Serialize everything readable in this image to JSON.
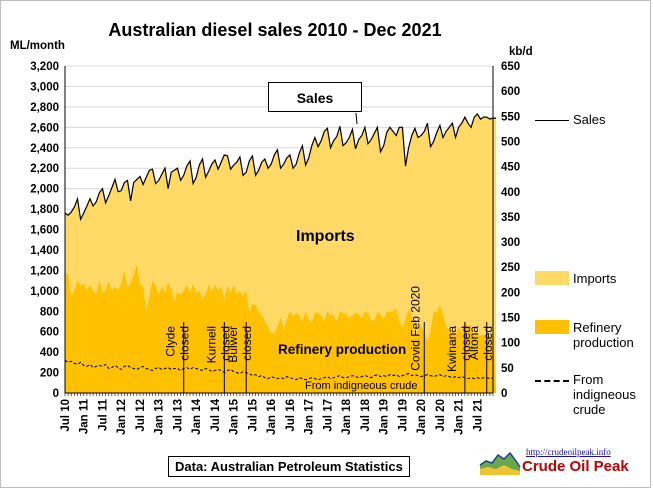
{
  "chart_data": {
    "type": "area",
    "title": "Australian diesel sales 2010 - Dec 2021",
    "ylabel": "ML/month",
    "y2label": "kb/d",
    "ylim": [
      0,
      3200
    ],
    "y2lim": [
      0,
      650
    ],
    "yticks": [
      "0",
      "200",
      "400",
      "600",
      "800",
      "1,000",
      "1,200",
      "1,400",
      "1,600",
      "1,800",
      "2,000",
      "2,200",
      "2,400",
      "2,600",
      "2,800",
      "3,000",
      "3,200"
    ],
    "y2ticks": [
      "0",
      "50",
      "100",
      "150",
      "200",
      "250",
      "300",
      "350",
      "400",
      "450",
      "500",
      "550",
      "600",
      "650"
    ],
    "xticks": [
      "Jul 10",
      "Jan 11",
      "Jul 11",
      "Jan 12",
      "Jul 12",
      "Jan 13",
      "Jul 13",
      "Jan 14",
      "Jul 14",
      "Jan 15",
      "Jul 15",
      "Jan 16",
      "Jul 16",
      "Jan 17",
      "Jul 17",
      "Jan 18",
      "Jul 18",
      "Jan 19",
      "Jul 19",
      "Jan 20",
      "Jul 20",
      "Jan 21",
      "Jul 21"
    ],
    "start": "2010-07",
    "end": "2021-12",
    "grid": true,
    "legend_position": "right",
    "series": [
      {
        "name": "Sales",
        "type": "line",
        "color": "#000000",
        "values": [
          1760,
          1740,
          1770,
          1820,
          1900,
          1700,
          1760,
          1830,
          1900,
          1830,
          1870,
          1960,
          2000,
          1860,
          1930,
          2010,
          2090,
          1970,
          1980,
          2060,
          2080,
          1880,
          2060,
          2090,
          2120,
          2040,
          2110,
          2180,
          2190,
          2050,
          2080,
          2140,
          2200,
          2000,
          2160,
          2180,
          2200,
          2080,
          2130,
          2220,
          2270,
          2050,
          2110,
          2230,
          2290,
          2110,
          2170,
          2240,
          2280,
          2190,
          2260,
          2330,
          2320,
          2190,
          2230,
          2260,
          2310,
          2130,
          2160,
          2270,
          2320,
          2130,
          2180,
          2260,
          2290,
          2200,
          2240,
          2330,
          2380,
          2200,
          2240,
          2300,
          2330,
          2200,
          2240,
          2350,
          2420,
          2230,
          2300,
          2420,
          2500,
          2410,
          2470,
          2560,
          2590,
          2400,
          2470,
          2510,
          2610,
          2420,
          2450,
          2500,
          2580,
          2390,
          2480,
          2520,
          2600,
          2440,
          2480,
          2540,
          2600,
          2360,
          2420,
          2550,
          2600,
          2560,
          2520,
          2600,
          2600,
          2220,
          2400,
          2520,
          2590,
          2500,
          2520,
          2560,
          2640,
          2410,
          2460,
          2550,
          2620,
          2500,
          2560,
          2600,
          2640,
          2500,
          2600,
          2640,
          2700,
          2640,
          2600,
          2700,
          2730,
          2680,
          2700,
          2700,
          2680,
          2690,
          2690
        ]
      },
      {
        "name": "Imports",
        "type": "area",
        "color": "#FFD966",
        "values": [
          1760,
          1740,
          1770,
          1820,
          1900,
          1700,
          1760,
          1830,
          1900,
          1830,
          1870,
          1960,
          2000,
          1860,
          1930,
          2010,
          2090,
          1970,
          1980,
          2060,
          2080,
          1880,
          2060,
          2090,
          2120,
          2040,
          2110,
          2180,
          2190,
          2050,
          2080,
          2140,
          2200,
          2000,
          2160,
          2180,
          2200,
          2080,
          2130,
          2220,
          2270,
          2050,
          2110,
          2230,
          2290,
          2110,
          2170,
          2240,
          2280,
          2190,
          2260,
          2330,
          2320,
          2190,
          2230,
          2260,
          2310,
          2130,
          2160,
          2270,
          2320,
          2130,
          2180,
          2260,
          2290,
          2200,
          2240,
          2330,
          2380,
          2200,
          2240,
          2300,
          2330,
          2200,
          2240,
          2350,
          2420,
          2230,
          2300,
          2420,
          2500,
          2410,
          2470,
          2560,
          2590,
          2400,
          2470,
          2510,
          2610,
          2420,
          2450,
          2500,
          2580,
          2390,
          2480,
          2520,
          2600,
          2440,
          2480,
          2540,
          2600,
          2360,
          2420,
          2550,
          2600,
          2560,
          2520,
          2600,
          2600,
          2220,
          2400,
          2520,
          2590,
          2500,
          2520,
          2560,
          2640,
          2410,
          2460,
          2550,
          2620,
          2500,
          2560,
          2600,
          2640,
          2500,
          2600,
          2640,
          2700,
          2640,
          2600,
          2700,
          2730,
          2680,
          2700,
          2700,
          2680,
          2690,
          2690
        ]
      },
      {
        "name": "Refinery production",
        "type": "area",
        "color": "#FFC000",
        "values": [
          1180,
          1160,
          950,
          1000,
          1100,
          1050,
          1070,
          1000,
          1060,
          1000,
          960,
          1100,
          980,
          1000,
          1090,
          1000,
          1040,
          1010,
          1060,
          1200,
          1020,
          1080,
          1150,
          1260,
          1060,
          1040,
          800,
          940,
          1100,
          1050,
          960,
          1040,
          980,
          1080,
          1020,
          900,
          990,
          960,
          1000,
          1060,
          980,
          1070,
          980,
          1000,
          920,
          960,
          1060,
          990,
          1060,
          1000,
          1040,
          920,
          1050,
          980,
          1060,
          970,
          1000,
          940,
          1000,
          780,
          870,
          860,
          790,
          760,
          700,
          650,
          580,
          590,
          650,
          740,
          620,
          720,
          800,
          750,
          780,
          760,
          690,
          800,
          720,
          680,
          790,
          780,
          760,
          700,
          800,
          760,
          760,
          700,
          800,
          780,
          770,
          730,
          760,
          790,
          770,
          730,
          800,
          780,
          710,
          700,
          800,
          760,
          720,
          800,
          790,
          800,
          830,
          700,
          640,
          720,
          820,
          760,
          540,
          620,
          660,
          580,
          510,
          600,
          800,
          790,
          860,
          760,
          650,
          610,
          620,
          560,
          650,
          590,
          710,
          640,
          660,
          560,
          580,
          560,
          570,
          560,
          560,
          570
        ]
      },
      {
        "name": "From indigneous crude",
        "type": "line",
        "color": "#000000",
        "dash": true,
        "values": [
          320,
          300,
          310,
          290,
          280,
          300,
          270,
          260,
          280,
          250,
          260,
          270,
          260,
          280,
          240,
          250,
          270,
          250,
          230,
          260,
          270,
          250,
          240,
          230,
          250,
          260,
          240,
          230,
          220,
          240,
          250,
          230,
          240,
          250,
          230,
          240,
          240,
          220,
          240,
          250,
          230,
          250,
          240,
          230,
          220,
          240,
          230,
          210,
          220,
          230,
          220,
          200,
          220,
          230,
          210,
          200,
          190,
          210,
          200,
          190,
          170,
          180,
          160,
          170,
          150,
          140,
          160,
          150,
          140,
          150,
          140,
          160,
          150,
          140,
          130,
          150,
          140,
          130,
          140,
          150,
          140,
          130,
          140,
          150,
          160,
          140,
          150,
          160,
          170,
          150,
          150,
          160,
          170,
          160,
          150,
          160,
          170,
          160,
          150,
          170,
          180,
          160,
          170,
          160,
          180,
          170,
          180,
          160,
          170,
          180,
          190,
          170,
          180,
          170,
          160,
          170,
          180,
          170,
          160,
          170,
          180,
          160,
          170,
          160,
          150,
          160,
          150,
          160,
          150,
          140,
          150,
          140,
          150,
          140,
          150,
          150,
          140,
          150
        ]
      }
    ],
    "annotations": [
      {
        "text": "Sales"
      },
      {
        "text": "Imports"
      },
      {
        "text": "Refinery production"
      },
      {
        "text": "From indigneous crude"
      },
      {
        "text": "Clyde closed",
        "date": "2013-09"
      },
      {
        "text": "Kurnell closed",
        "date": "2014-10"
      },
      {
        "text": "Bulwer closed",
        "date": "2015-05"
      },
      {
        "text": "Covid Feb 2020",
        "date": "2020-02"
      },
      {
        "text": "Kwinana closed",
        "date": "2021-03"
      },
      {
        "text": "Altona closed",
        "date": "2021-10"
      }
    ]
  },
  "source_note": "Data: Australian Petroleum Statistics",
  "logo": {
    "url": "http://crudeoilpeak.info",
    "name": "Crude Oil Peak"
  }
}
